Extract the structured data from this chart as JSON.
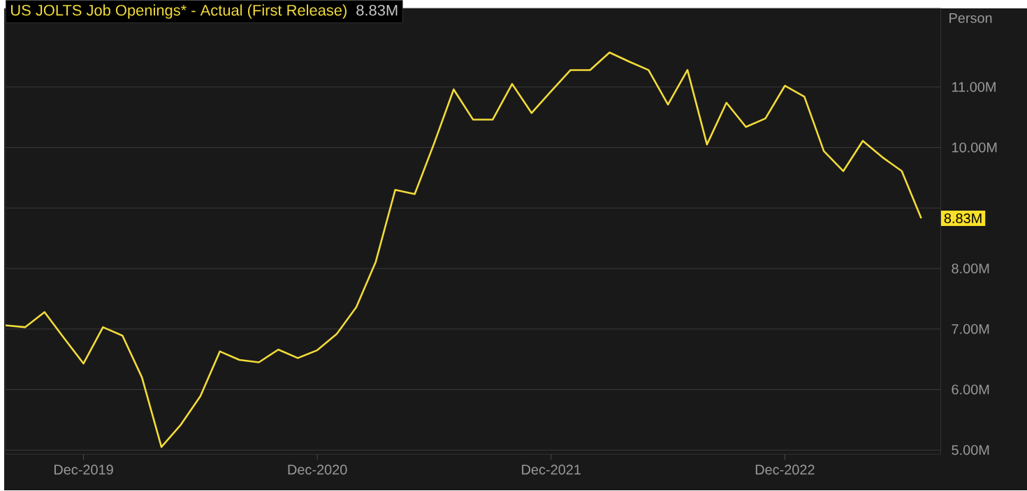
{
  "chart_data": {
    "type": "line",
    "title": "US JOLTS Job Openings* - Actual (First Release)",
    "subtitle": "8.83M",
    "ylabel": "Person",
    "x": [
      "2019-08",
      "2019-09",
      "2019-10",
      "2019-11",
      "2019-12",
      "2020-01",
      "2020-02",
      "2020-03",
      "2020-04",
      "2020-05",
      "2020-06",
      "2020-07",
      "2020-08",
      "2020-09",
      "2020-10",
      "2020-11",
      "2020-12",
      "2021-01",
      "2021-02",
      "2021-03",
      "2021-04",
      "2021-05",
      "2021-06",
      "2021-07",
      "2021-08",
      "2021-09",
      "2021-10",
      "2021-11",
      "2021-12",
      "2022-01",
      "2022-02",
      "2022-03",
      "2022-04",
      "2022-05",
      "2022-06",
      "2022-07",
      "2022-08",
      "2022-09",
      "2022-10",
      "2022-11",
      "2022-12",
      "2023-01",
      "2023-02",
      "2023-03",
      "2023-04",
      "2023-05",
      "2023-06",
      "2023-07"
    ],
    "series": [
      {
        "color": "#f2dc3a",
        "values": [
          7.06,
          7.03,
          7.28,
          6.85,
          6.43,
          7.03,
          6.89,
          6.2,
          5.05,
          5.42,
          5.89,
          6.63,
          6.49,
          6.45,
          6.66,
          6.52,
          6.65,
          6.92,
          7.36,
          8.11,
          9.3,
          9.23,
          10.07,
          10.96,
          10.46,
          10.46,
          11.05,
          10.57,
          10.93,
          11.28,
          11.28,
          11.57,
          11.42,
          11.28,
          10.71,
          11.28,
          10.05,
          10.74,
          10.34,
          10.48,
          11.02,
          10.84,
          9.94,
          9.61,
          10.11,
          9.84,
          9.61,
          8.83
        ]
      }
    ],
    "xlim": [
      "2019-08",
      "2023-08"
    ],
    "xticks": [
      {
        "value": "2019-12",
        "label": "Dec-2019"
      },
      {
        "value": "2020-12",
        "label": "Dec-2020"
      },
      {
        "value": "2021-12",
        "label": "Dec-2021"
      },
      {
        "value": "2022-12",
        "label": "Dec-2022"
      }
    ],
    "ylim": [
      4.93,
      12.3
    ],
    "yticks": [
      {
        "value": 5,
        "label": "5.00M"
      },
      {
        "value": 6,
        "label": "6.00M"
      },
      {
        "value": 7,
        "label": "7.00M"
      },
      {
        "value": 8,
        "label": "8.00M"
      },
      {
        "value": 9,
        "label": null
      },
      {
        "value": 10,
        "label": "10.00M"
      },
      {
        "value": 11,
        "label": "11.00M"
      }
    ],
    "grid": "y",
    "annotations": [
      {
        "text": "8.83M",
        "x": "2023-07",
        "y": 8.83
      }
    ]
  }
}
